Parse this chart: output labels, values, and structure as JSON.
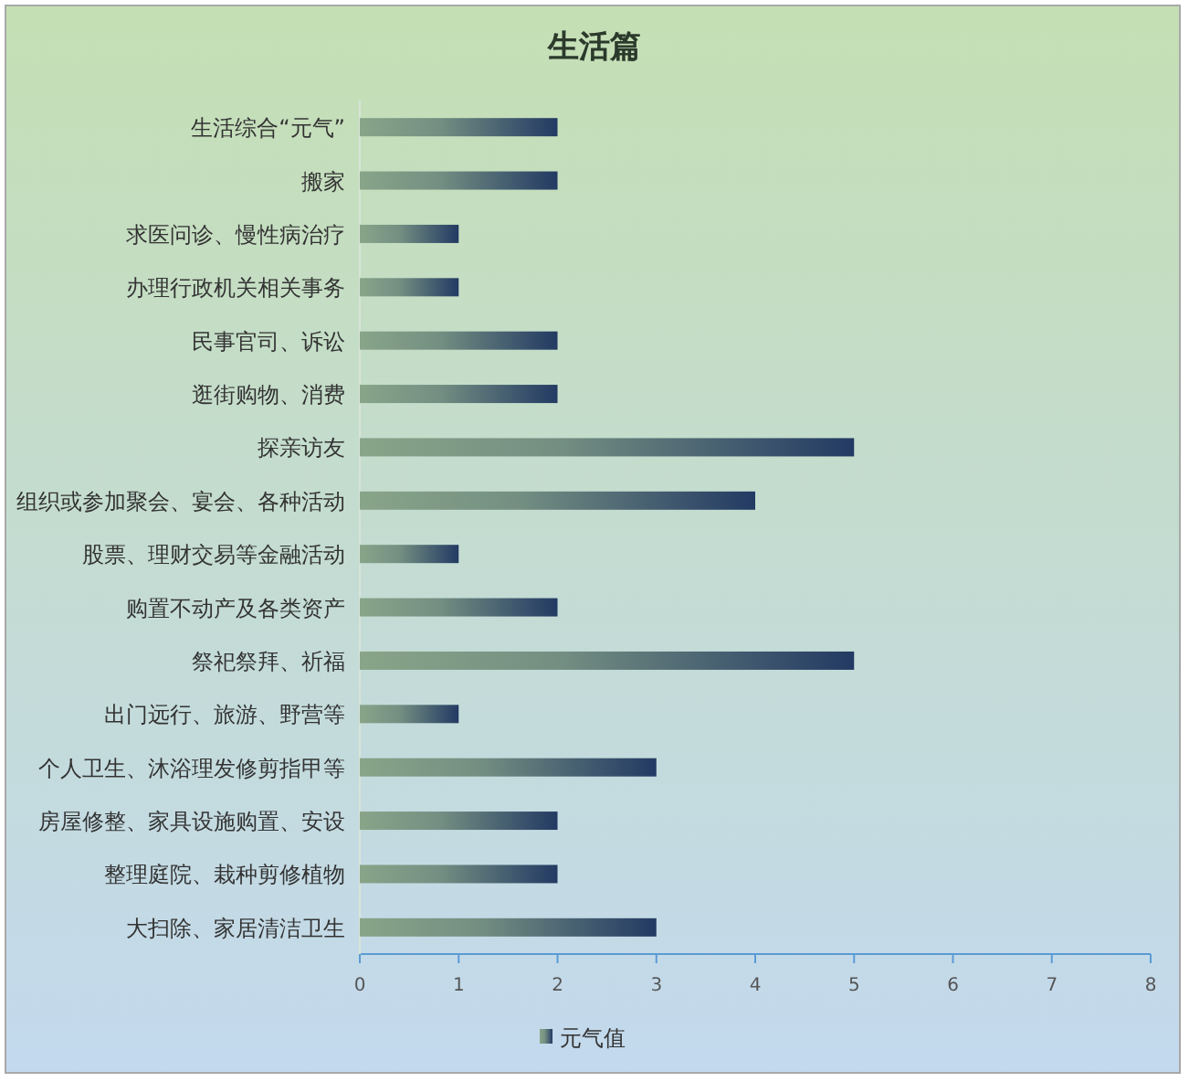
{
  "chart_data": {
    "type": "bar",
    "orientation": "horizontal",
    "title": "生活篇",
    "categories": [
      "生活综合“元气”",
      "搬家",
      "求医问诊、慢性病治疗",
      "办理行政机关相关事务",
      "民事官司、诉讼",
      "逛街购物、消费",
      "探亲访友",
      "组织或参加聚会、宴会、各种活动",
      "股票、理财交易等金融活动",
      "购置不动产及各类资产",
      "祭祀祭拜、祈福",
      "出门远行、旅游、野营等",
      "个人卫生、沐浴理发修剪指甲等",
      "房屋修整、家具设施购置、安设",
      "整理庭院、栽种剪修植物",
      "大扫除、家居清洁卫生"
    ],
    "series": [
      {
        "name": "元气值",
        "color": "#233a63",
        "values": [
          2,
          2,
          1,
          1,
          2,
          2,
          5,
          4,
          1,
          2,
          5,
          1,
          3,
          2,
          2,
          3
        ]
      }
    ],
    "xlim": [
      0,
      8
    ],
    "xticks": [
      0,
      1,
      2,
      3,
      4,
      5,
      6,
      7,
      8
    ],
    "grid": false,
    "legend": "bottom"
  }
}
